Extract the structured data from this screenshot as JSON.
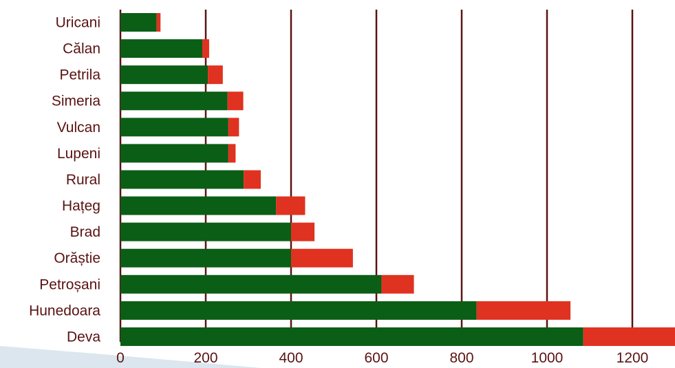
{
  "chart_data": {
    "type": "bar",
    "orientation": "horizontal",
    "stacked": true,
    "categories": [
      "Uricani",
      "Călan",
      "Petrila",
      "Simeria",
      "Vulcan",
      "Lupeni",
      "Rural",
      "Hațeg",
      "Brad",
      "Orăștie",
      "Petroșani",
      "Hunedoara",
      "Deva"
    ],
    "series": [
      {
        "color": "#0b5e16",
        "values": [
          85,
          192,
          205,
          251,
          253,
          253,
          289,
          365,
          400,
          400,
          612,
          835,
          1085
        ]
      },
      {
        "color": "#e03220",
        "values": [
          9,
          16,
          35,
          37,
          25,
          17,
          40,
          68,
          55,
          145,
          76,
          220,
          222
        ]
      }
    ],
    "xlim": [
      0,
      1300
    ],
    "xticks": [
      0,
      200,
      400,
      600,
      800,
      1000,
      1200
    ],
    "grid": {
      "vertical": true,
      "color": "#5a1212"
    },
    "legend": "none",
    "title": "",
    "xlabel": "",
    "ylabel": ""
  }
}
